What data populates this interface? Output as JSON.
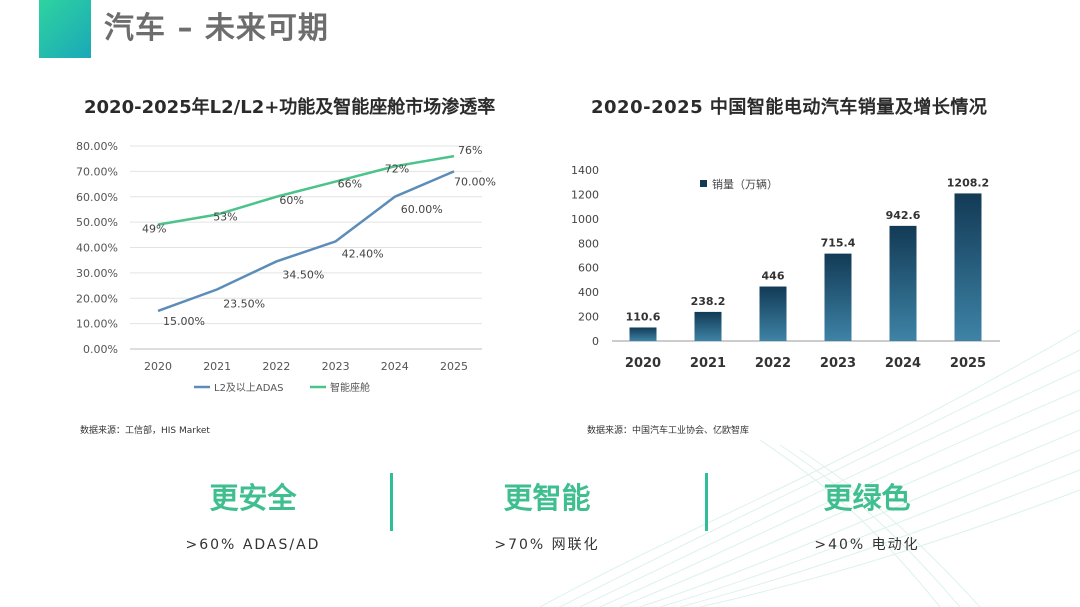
{
  "page": {
    "title": "汽车 – 未来可期"
  },
  "left_chart": {
    "title": "2020-2025年L2/L2+功能及智能座舱市场渗透率",
    "source": "数据来源：工信部，HIS Market",
    "legend": [
      "L2及以上ADAS",
      "智能座舱"
    ]
  },
  "right_chart": {
    "title": "2020-2025 中国智能电动汽车销量及增长情况",
    "source": "数据来源：中国汽车工业协会、亿欧智库",
    "legend": [
      "销量（万辆）"
    ]
  },
  "chart_data": [
    {
      "type": "line",
      "title": "2020-2025年L2/L2+功能及智能座舱市场渗透率",
      "x": [
        "2020",
        "2021",
        "2022",
        "2023",
        "2024",
        "2025"
      ],
      "series": [
        {
          "name": "L2及以上ADAS",
          "values": [
            15.0,
            23.5,
            34.5,
            42.4,
            60.0,
            70.0
          ],
          "labels": [
            "15.00%",
            "23.50%",
            "34.50%",
            "42.40%",
            "60.00%",
            "70.00%"
          ],
          "color": "#5b8db8"
        },
        {
          "name": "智能座舱",
          "values": [
            49,
            53,
            60,
            66,
            72,
            76
          ],
          "labels": [
            "49%",
            "53%",
            "60%",
            "66%",
            "72%",
            "76%"
          ],
          "color": "#4cc38a"
        }
      ],
      "ylim": [
        0,
        80
      ],
      "yticks": [
        "0.00%",
        "10.00%",
        "20.00%",
        "30.00%",
        "40.00%",
        "50.00%",
        "60.00%",
        "70.00%",
        "80.00%"
      ],
      "grid": true,
      "legend_position": "bottom"
    },
    {
      "type": "bar",
      "title": "2020-2025 中国智能电动汽车销量及增长情况",
      "categories": [
        "2020",
        "2021",
        "2022",
        "2023",
        "2024",
        "2025"
      ],
      "series": [
        {
          "name": "销量（万辆）",
          "values": [
            110.6,
            238.2,
            446,
            715.4,
            942.6,
            1208.2
          ],
          "labels": [
            "110.6",
            "238.2",
            "446",
            "715.4",
            "942.6",
            "1208.2"
          ]
        }
      ],
      "ylim": [
        0,
        1400
      ],
      "yticks": [
        "0",
        "200",
        "400",
        "600",
        "800",
        "1000",
        "1200",
        "1400"
      ],
      "grid": false,
      "legend_position": "top-left",
      "colors": {
        "bar_top": "#123a55",
        "bar_bottom": "#3e83a6"
      }
    }
  ],
  "pillars": [
    {
      "head": "更安全",
      "sub": ">60% ADAS/AD"
    },
    {
      "head": "更智能",
      "sub": ">70% 网联化"
    },
    {
      "head": "更绿色",
      "sub": ">40% 电动化"
    }
  ],
  "colors": {
    "accent": "#3fbf8f",
    "title_bar": "#22c0a8",
    "divider": "#2fbf96"
  }
}
